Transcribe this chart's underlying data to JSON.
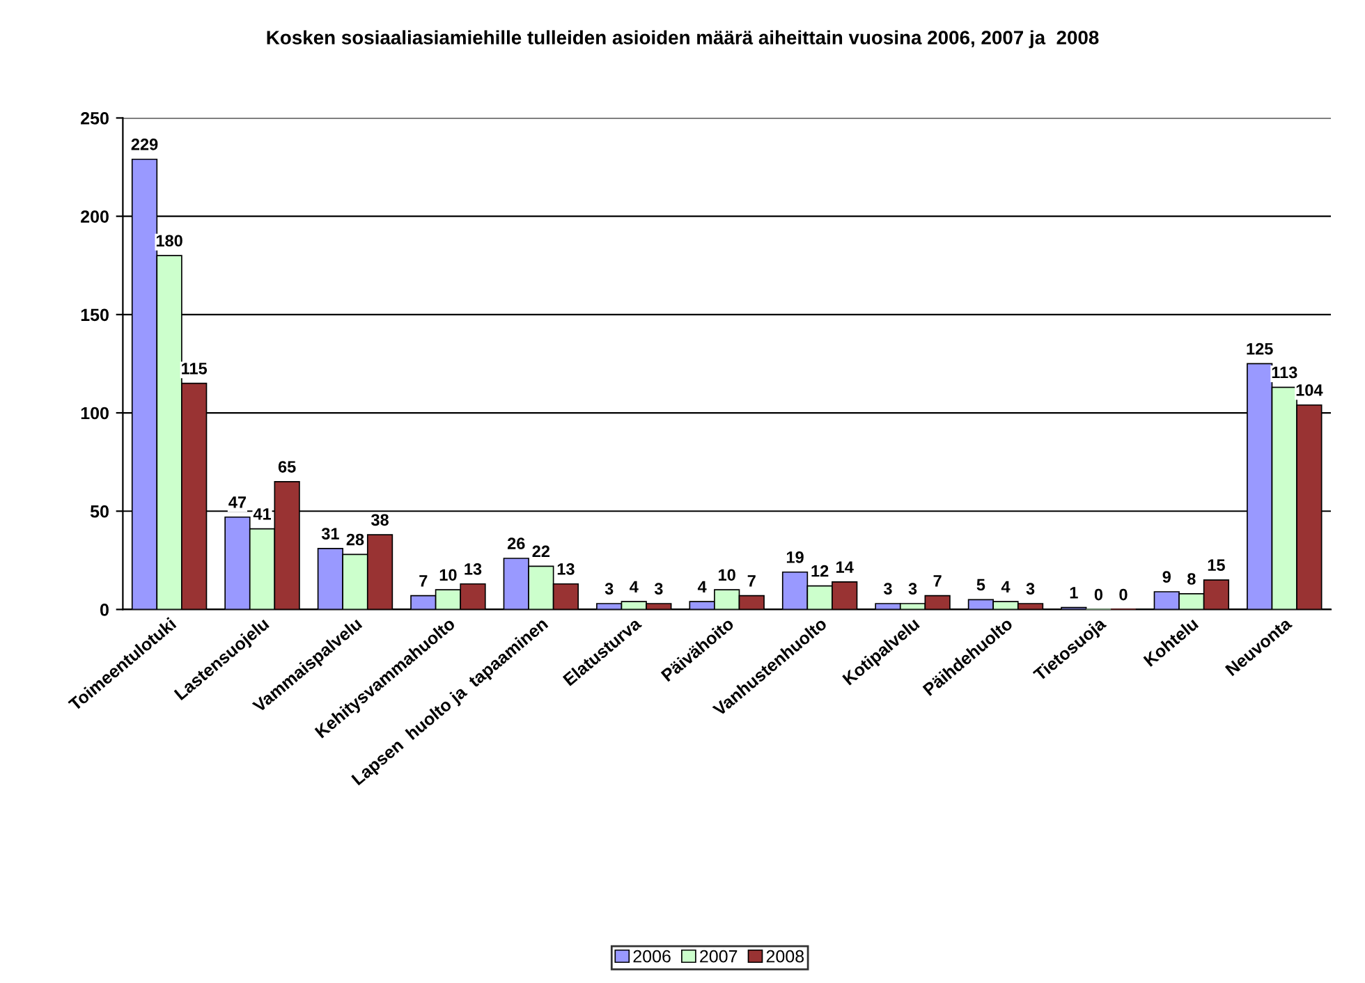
{
  "chart_data": {
    "type": "bar",
    "title": "Kosken sosiaaliasiamiehille tulleiden asioiden määrä aiheittain vuosina 2006, 2007 ja  2008",
    "categories": [
      "Toimeentulotuki",
      "Lastensuojelu",
      "Vammaispalvelu",
      "Kehitysvammahuolto",
      "Lapsen  huolto ja  tapaaminen",
      "Elatusturva",
      "Päivähoito",
      "Vanhustenhuolto",
      "Kotipalvelu",
      "Päihdehuolto",
      "Tietosuoja",
      "Kohtelu",
      "Neuvonta"
    ],
    "series": [
      {
        "name": "2006",
        "color": "#9999ff",
        "values": [
          229,
          47,
          31,
          7,
          26,
          3,
          4,
          19,
          3,
          5,
          1,
          9,
          125
        ]
      },
      {
        "name": "2007",
        "color": "#ccffcc",
        "values": [
          180,
          41,
          28,
          10,
          22,
          4,
          10,
          12,
          3,
          4,
          0,
          8,
          113
        ]
      },
      {
        "name": "2008",
        "color": "#993333",
        "values": [
          115,
          65,
          38,
          13,
          13,
          3,
          7,
          14,
          7,
          3,
          0,
          15,
          104
        ]
      }
    ],
    "ylim": [
      0,
      250
    ],
    "yticks": [
      0,
      50,
      100,
      150,
      200,
      250
    ],
    "grid": "y",
    "legend": "bottom",
    "data_labels": true
  }
}
